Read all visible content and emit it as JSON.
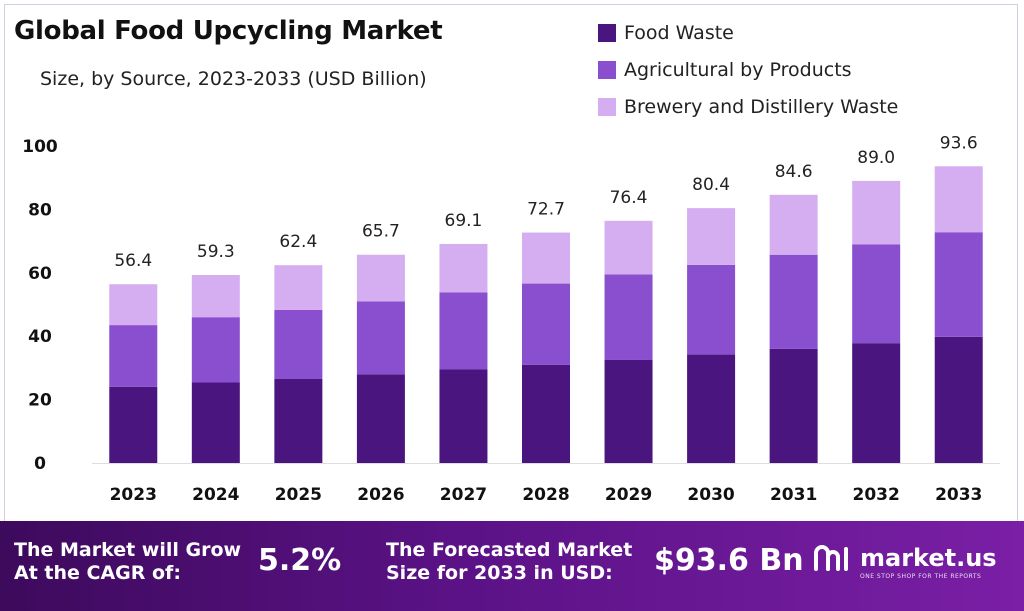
{
  "header": {
    "title": "Global Food Upcycling Market",
    "subtitle": "Size, by Source, 2023-2033 (USD Billion)"
  },
  "legend": [
    {
      "label": "Food Waste",
      "color": "#4b1580"
    },
    {
      "label": "Agricultural by Products",
      "color": "#8a4fce"
    },
    {
      "label": "Brewery and Distillery Waste",
      "color": "#d4aef0"
    }
  ],
  "chart_data": {
    "type": "bar",
    "stacked": true,
    "categories": [
      "2023",
      "2024",
      "2025",
      "2026",
      "2027",
      "2028",
      "2029",
      "2030",
      "2031",
      "2032",
      "2033"
    ],
    "series": [
      {
        "name": "Food Waste",
        "color": "#4b1580",
        "values": [
          24,
          25.4,
          26.5,
          28,
          29.5,
          31,
          32.5,
          34.2,
          36,
          37.8,
          39.8
        ]
      },
      {
        "name": "Agricultural by Products",
        "color": "#8a4fce",
        "values": [
          19.5,
          20.6,
          21.8,
          23,
          24.3,
          25.6,
          27,
          28.3,
          29.7,
          31.2,
          33
        ]
      },
      {
        "name": "Brewery and Distillery Waste",
        "color": "#d4aef0",
        "values": [
          12.9,
          13.3,
          14.1,
          14.7,
          15.3,
          16.1,
          16.9,
          17.9,
          18.9,
          20,
          20.8
        ]
      }
    ],
    "totals": [
      "56.4",
      "59.3",
      "62.4",
      "65.7",
      "69.1",
      "72.7",
      "76.4",
      "80.4",
      "84.6",
      "89.0",
      "93.6"
    ],
    "ylim": [
      0,
      100
    ],
    "yticks": [
      0,
      20,
      40,
      60,
      80,
      100
    ],
    "grid": false,
    "legend_position": "top-right"
  },
  "footer": {
    "cagr_label_line1": "The Market will Grow",
    "cagr_label_line2": "At the CAGR of:",
    "cagr_value": "5.2%",
    "forecast_label_line1": "The Forecasted Market",
    "forecast_label_line2": "Size for 2033 in USD:",
    "forecast_value": "$93.6 Bn",
    "brand": "market.us",
    "brand_tagline": "ONE STOP SHOP FOR THE REPORTS"
  }
}
